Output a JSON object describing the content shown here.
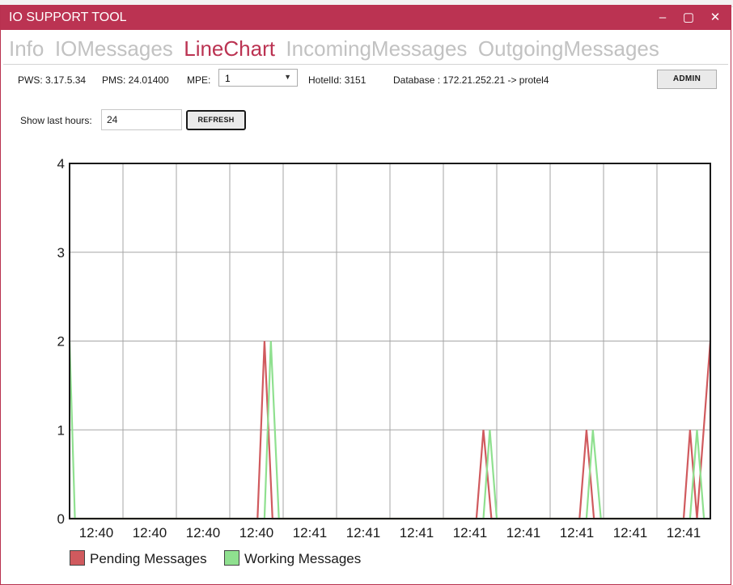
{
  "window": {
    "title": "IO SUPPORT TOOL",
    "minimize_glyph": "–",
    "maximize_glyph": "▢",
    "close_glyph": "✕"
  },
  "tabs": [
    {
      "label": "Info",
      "active": false
    },
    {
      "label": "IOMessages",
      "active": false
    },
    {
      "label": "LineChart",
      "active": true
    },
    {
      "label": "IncomingMessages",
      "active": false
    },
    {
      "label": "OutgoingMessages",
      "active": false
    }
  ],
  "info": {
    "pws": "PWS: 3.17.5.34",
    "pms": "PMS: 24.01400",
    "mpe_label": "MPE:",
    "mpe_value": "1",
    "hotel": "HotelId: 3151",
    "database": "Database : 172.21.252.21 -> protel4",
    "admin_label": "ADMIN"
  },
  "filter": {
    "hours_label": "Show last hours:",
    "hours_value": "24",
    "refresh_label": "REFRESH"
  },
  "colors": {
    "accent": "#bb3352",
    "pending": "#d05a5e",
    "working": "#8fe08f"
  },
  "chart_data": {
    "type": "line",
    "x_tick_labels": [
      "12:40",
      "12:40",
      "12:40",
      "12:40",
      "12:41",
      "12:41",
      "12:41",
      "12:41",
      "12:41",
      "12:41",
      "12:41",
      "12:41"
    ],
    "y_ticks": [
      0,
      1,
      2,
      3,
      4
    ],
    "ylim": [
      0,
      4
    ],
    "xlim": [
      0,
      12
    ],
    "grid": true,
    "legend_position": "bottom-left",
    "series": [
      {
        "name": "Pending Messages",
        "color": "#d05a5e",
        "x": [
          0,
          0.08,
          3.52,
          3.65,
          3.8,
          7.62,
          7.75,
          7.9,
          9.55,
          9.68,
          9.82,
          11.5,
          11.62,
          11.75,
          12
        ],
        "y": [
          0,
          0,
          0,
          2,
          0,
          0,
          1,
          0,
          0,
          1,
          0,
          0,
          1,
          0,
          2
        ]
      },
      {
        "name": "Working Messages",
        "color": "#8fe08f",
        "x": [
          0,
          0.1,
          3.65,
          3.77,
          3.92,
          7.75,
          7.87,
          8.0,
          9.68,
          9.8,
          9.95,
          11.62,
          11.75,
          11.88,
          12
        ],
        "y": [
          2,
          0,
          0,
          2,
          0,
          0,
          1,
          0,
          0,
          1,
          0,
          0,
          1,
          0,
          0
        ]
      }
    ]
  }
}
